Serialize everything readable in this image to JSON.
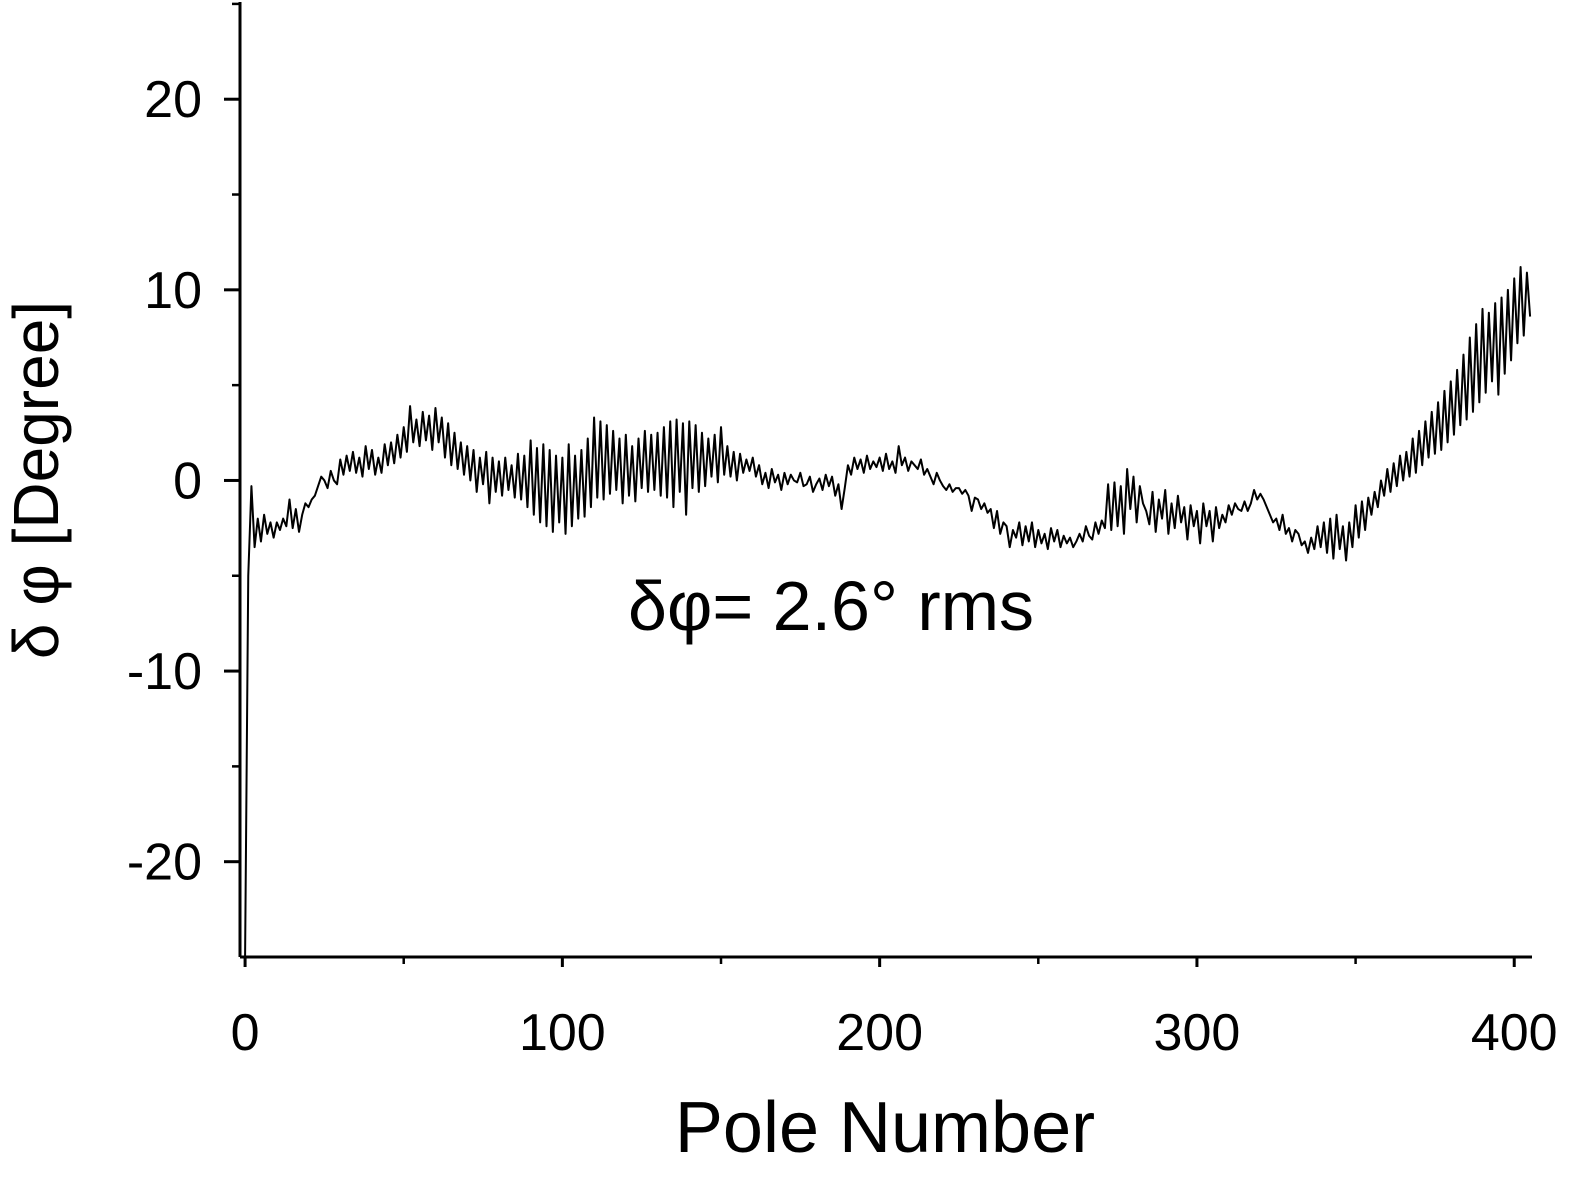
{
  "chart_data": {
    "type": "line",
    "xlabel": "Pole Number",
    "ylabel": "δ φ [Degree]",
    "annotation": "δφ= 2.6° rms",
    "xlim": [
      -1.6,
      405.6
    ],
    "ylim": [
      -25,
      25.1
    ],
    "xticks": [
      0,
      100,
      200,
      300,
      400
    ],
    "xminorticks": [
      50,
      150,
      250,
      350
    ],
    "yticks": [
      -20,
      -10,
      0,
      10,
      20
    ],
    "yminorticks": [
      -15,
      -5,
      5,
      15,
      25
    ],
    "grid": false,
    "x": [
      0,
      1,
      2,
      3,
      4,
      5,
      6,
      7,
      8,
      9,
      10,
      11,
      12,
      13,
      14,
      15,
      16,
      17,
      18,
      19,
      20,
      21,
      22,
      23,
      24,
      25,
      26,
      27,
      28,
      29,
      30,
      31,
      32,
      33,
      34,
      35,
      36,
      37,
      38,
      39,
      40,
      41,
      42,
      43,
      44,
      45,
      46,
      47,
      48,
      49,
      50,
      51,
      52,
      53,
      54,
      55,
      56,
      57,
      58,
      59,
      60,
      61,
      62,
      63,
      64,
      65,
      66,
      67,
      68,
      69,
      70,
      71,
      72,
      73,
      74,
      75,
      76,
      77,
      78,
      79,
      80,
      81,
      82,
      83,
      84,
      85,
      86,
      87,
      88,
      89,
      90,
      91,
      92,
      93,
      94,
      95,
      96,
      97,
      98,
      99,
      100,
      101,
      102,
      103,
      104,
      105,
      106,
      107,
      108,
      109,
      110,
      111,
      112,
      113,
      114,
      115,
      116,
      117,
      118,
      119,
      120,
      121,
      122,
      123,
      124,
      125,
      126,
      127,
      128,
      129,
      130,
      131,
      132,
      133,
      134,
      135,
      136,
      137,
      138,
      139,
      140,
      141,
      142,
      143,
      144,
      145,
      146,
      147,
      148,
      149,
      150,
      151,
      152,
      153,
      154,
      155,
      156,
      157,
      158,
      159,
      160,
      161,
      162,
      163,
      164,
      165,
      166,
      167,
      168,
      169,
      170,
      171,
      172,
      173,
      174,
      175,
      176,
      177,
      178,
      179,
      180,
      181,
      182,
      183,
      184,
      185,
      186,
      187,
      188,
      189,
      190,
      191,
      192,
      193,
      194,
      195,
      196,
      197,
      198,
      199,
      200,
      201,
      202,
      203,
      204,
      205,
      206,
      207,
      208,
      209,
      210,
      211,
      212,
      213,
      214,
      215,
      216,
      217,
      218,
      219,
      220,
      221,
      222,
      223,
      224,
      225,
      226,
      227,
      228,
      229,
      230,
      231,
      232,
      233,
      234,
      235,
      236,
      237,
      238,
      239,
      240,
      241,
      242,
      243,
      244,
      245,
      246,
      247,
      248,
      249,
      250,
      251,
      252,
      253,
      254,
      255,
      256,
      257,
      258,
      259,
      260,
      261,
      262,
      263,
      264,
      265,
      266,
      267,
      268,
      269,
      270,
      271,
      272,
      273,
      274,
      275,
      276,
      277,
      278,
      279,
      280,
      281,
      282,
      283,
      284,
      285,
      286,
      287,
      288,
      289,
      290,
      291,
      292,
      293,
      294,
      295,
      296,
      297,
      298,
      299,
      300,
      301,
      302,
      303,
      304,
      305,
      306,
      307,
      308,
      309,
      310,
      311,
      312,
      313,
      314,
      315,
      316,
      317,
      318,
      319,
      320,
      321,
      322,
      323,
      324,
      325,
      326,
      327,
      328,
      329,
      330,
      331,
      332,
      333,
      334,
      335,
      336,
      337,
      338,
      339,
      340,
      341,
      342,
      343,
      344,
      345,
      346,
      347,
      348,
      349,
      350,
      351,
      352,
      353,
      354,
      355,
      356,
      357,
      358,
      359,
      360,
      361,
      362,
      363,
      364,
      365,
      366,
      367,
      368,
      369,
      370,
      371,
      372,
      373,
      374,
      375,
      376,
      377,
      378,
      379,
      380,
      381,
      382,
      383,
      384,
      385,
      386,
      387,
      388,
      389,
      390,
      391,
      392,
      393,
      394,
      395,
      396,
      397,
      398,
      399,
      400,
      401,
      402,
      403,
      404,
      405
    ],
    "series": [
      {
        "color": "#000000",
        "values": [
          -25,
          -5,
          -0.3,
          -3.5,
          -2,
          -3.2,
          -1.8,
          -2.8,
          -2.2,
          -3,
          -2.2,
          -2.6,
          -2,
          -2.4,
          -1,
          -2.5,
          -1.5,
          -2.7,
          -1.8,
          -1.2,
          -1.4,
          -1,
          -0.8,
          -0.3,
          0.2,
          0,
          -0.4,
          0.5,
          0,
          -0.2,
          1.1,
          0.3,
          1.3,
          0.5,
          1.5,
          0.4,
          1.2,
          0.2,
          1.8,
          0.6,
          1.6,
          0.3,
          1.2,
          0.4,
          1.9,
          0.8,
          2,
          0.9,
          2.4,
          1.2,
          2.8,
          1.5,
          3.9,
          2,
          3.2,
          1.8,
          3.6,
          2.1,
          3.4,
          1.6,
          3.8,
          2,
          3.3,
          1.2,
          3,
          0.8,
          2.5,
          0.6,
          2,
          0.3,
          1.8,
          0,
          1.6,
          -0.6,
          1.2,
          -0.2,
          1.5,
          -1.2,
          1.2,
          -0.6,
          1,
          -0.8,
          1.2,
          -0.5,
          0.8,
          -0.9,
          1.4,
          -1,
          1.3,
          -1.4,
          2.1,
          -1.8,
          1.7,
          -2.2,
          1.9,
          -2.4,
          1.6,
          -2.7,
          1.3,
          -2.2,
          1.2,
          -2.8,
          1.9,
          -2.4,
          1.3,
          -2,
          1.6,
          -1.9,
          2.2,
          -1.4,
          3.3,
          -0.9,
          3.1,
          -1,
          2.9,
          -0.7,
          2.6,
          -0.5,
          2.2,
          -1.2,
          2.4,
          -0.8,
          1.8,
          -1.1,
          2.2,
          -0.4,
          2.6,
          -0.6,
          2.4,
          -0.5,
          2.5,
          -0.8,
          2.8,
          -0.9,
          3.1,
          -1.4,
          3.2,
          -0.6,
          3,
          -1.8,
          3.1,
          -0.4,
          2.9,
          -0.6,
          2.5,
          -0.3,
          2.2,
          0.2,
          2.4,
          -0.1,
          2.8,
          0.3,
          1.8,
          0.2,
          1.5,
          0,
          1.4,
          0.4,
          1.1,
          0.5,
          1.2,
          0.2,
          0.8,
          -0.2,
          0.4,
          -0.4,
          0.6,
          -0.1,
          0.3,
          -0.5,
          0.4,
          -0.2,
          0.3,
          0,
          -0.1,
          0.4,
          -0.3,
          -0.2,
          0.2,
          -0.6,
          -0.2,
          0.1,
          -0.5,
          0.3,
          -0.3,
          0.2,
          -0.8,
          -0.2,
          -1.5,
          -0.4,
          0.8,
          0.3,
          1.2,
          0.6,
          1.1,
          0.4,
          1.3,
          0.6,
          1,
          0.7,
          1.2,
          0.5,
          1.4,
          0.6,
          1,
          0.4,
          1.8,
          0.8,
          1.2,
          0.5,
          1,
          0.8,
          0.6,
          1.1,
          0.3,
          0.6,
          0.2,
          -0.2,
          0.4,
          0,
          -0.3,
          -0.5,
          -0.2,
          -0.6,
          -0.4,
          -0.4,
          -0.7,
          -0.5,
          -0.8,
          -1.6,
          -0.9,
          -1,
          -1.5,
          -1.2,
          -1.7,
          -1.5,
          -2.5,
          -1.6,
          -2.8,
          -2.2,
          -2.4,
          -3.5,
          -2.6,
          -3,
          -2.2,
          -3.4,
          -2.4,
          -3.2,
          -2.2,
          -3.5,
          -2.6,
          -3.3,
          -2.8,
          -3.6,
          -2.5,
          -3.2,
          -2.6,
          -3.5,
          -2.9,
          -3.3,
          -3,
          -3.5,
          -3.2,
          -2.8,
          -3.2,
          -2.4,
          -2.9,
          -3.1,
          -2.2,
          -2.8,
          -2.1,
          -2.5,
          -0.2,
          -2.6,
          -0.1,
          -2.4,
          -0.3,
          -2.8,
          0.6,
          -1.5,
          0.2,
          -2.2,
          -0.3,
          -1.2,
          -1.6,
          -2.3,
          -0.6,
          -2.7,
          -1,
          -2,
          -0.5,
          -2.8,
          -1.2,
          -2.5,
          -0.8,
          -2.2,
          -1.4,
          -3.1,
          -1.3,
          -2.4,
          -1.6,
          -3.3,
          -1.2,
          -2.4,
          -1.6,
          -3.2,
          -1.4,
          -2.5,
          -1.8,
          -2.2,
          -1.3,
          -1.8,
          -1.2,
          -1.5,
          -1.6,
          -1.1,
          -1.6,
          -1.2,
          -0.5,
          -1,
          -0.7,
          -1,
          -1.4,
          -1.8,
          -2.2,
          -2,
          -2.6,
          -1.8,
          -2.8,
          -2.5,
          -3.2,
          -2.6,
          -2.8,
          -3.4,
          -3.2,
          -3.8,
          -3,
          -3.6,
          -2.4,
          -3.5,
          -2.2,
          -3.8,
          -2,
          -4.1,
          -1.8,
          -3.6,
          -2.4,
          -4.2,
          -2.2,
          -3.5,
          -1.3,
          -3,
          -1.1,
          -2.6,
          -0.9,
          -1.8,
          -0.6,
          -1.4,
          0,
          -0.8,
          0.6,
          -0.6,
          0.9,
          -0.3,
          1.3,
          0,
          1.5,
          0.2,
          2.2,
          0.4,
          2.6,
          0.8,
          3.1,
          1.2,
          3.6,
          1.4,
          4.1,
          1.6,
          4.7,
          2,
          5.2,
          2.4,
          5.8,
          2.9,
          6.6,
          3.2,
          7.5,
          3.6,
          8.2,
          4.1,
          9,
          4.6,
          8.8,
          5.2,
          9.3,
          4.5,
          9.6,
          5.6,
          10,
          6.3,
          10.6,
          7.2,
          11.2,
          7.6,
          10.9,
          8.6
        ]
      }
    ]
  }
}
